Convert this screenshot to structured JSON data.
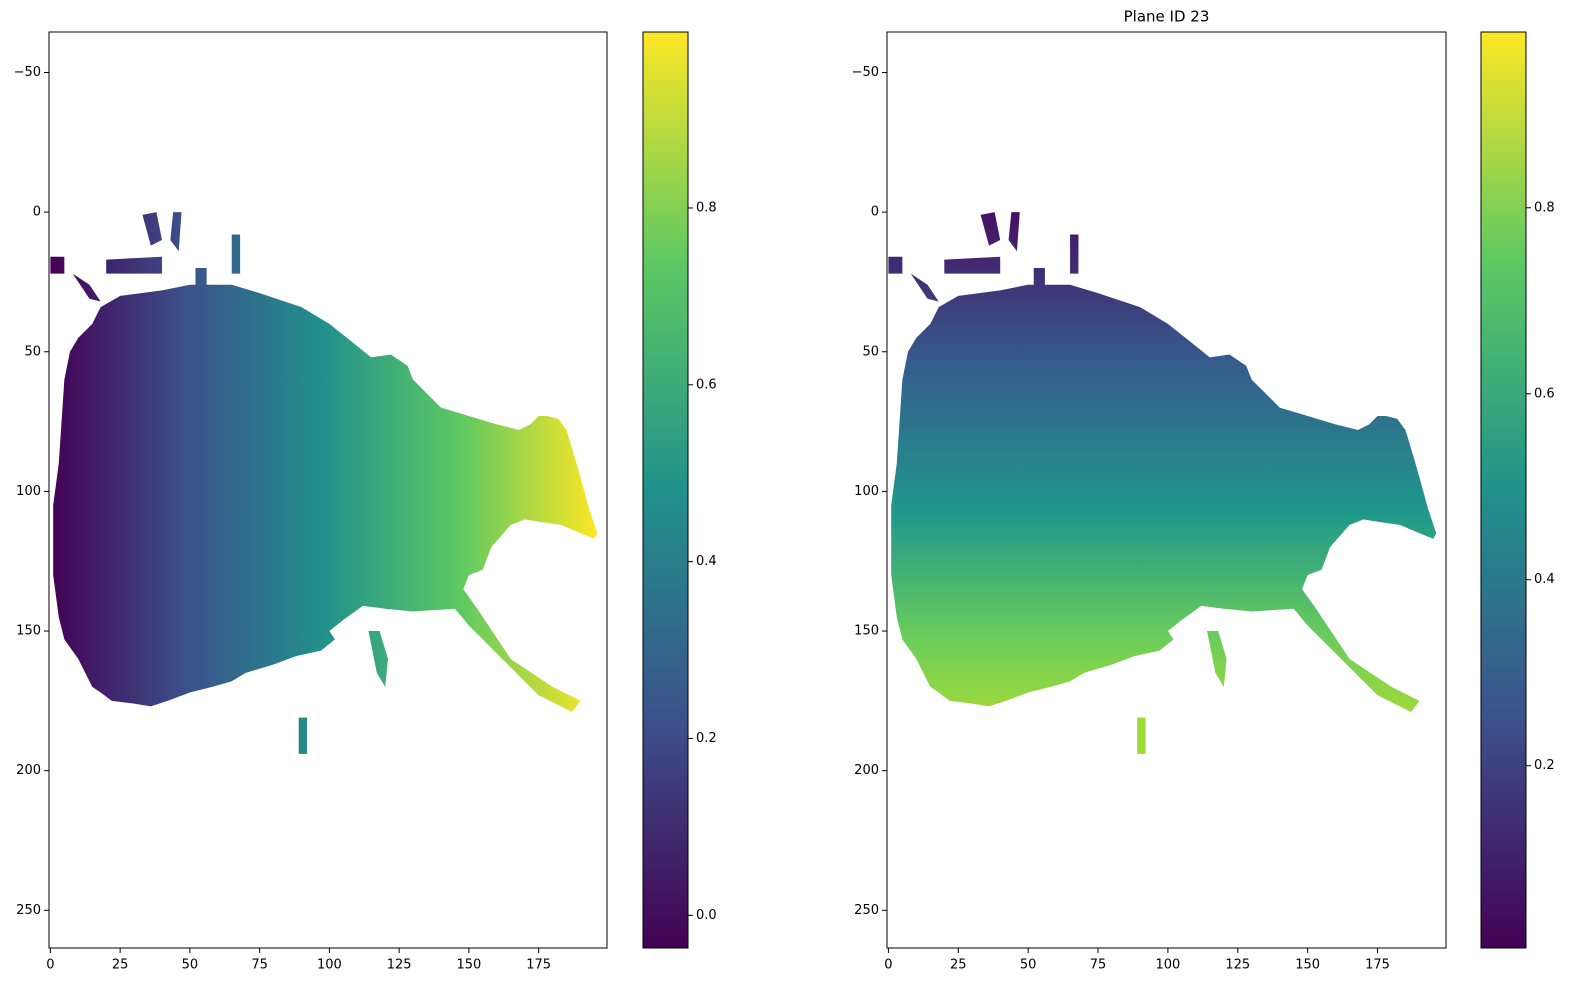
{
  "chart_data": [
    {
      "type": "heatmap",
      "xlim": [
        -0.5,
        199.5
      ],
      "ylim": [
        263.5,
        -64.5
      ],
      "xticks": [
        0,
        25,
        50,
        75,
        100,
        125,
        150,
        175
      ],
      "yticks": [
        {
          "value": -50,
          "label": "−50"
        },
        0,
        50,
        100,
        150,
        200,
        250
      ],
      "colorbar": {
        "lim": [
          -0.037,
          0.999
        ],
        "ticks": [
          {
            "value": 0,
            "label": "0.0"
          },
          0.2,
          0.4,
          0.6,
          0.8
        ]
      }
    },
    {
      "type": "heatmap",
      "title": "Plane ID 23",
      "xlim": [
        -0.5,
        199.5
      ],
      "ylim": [
        263.5,
        -64.5
      ],
      "xticks": [
        0,
        25,
        50,
        75,
        100,
        125,
        150,
        175
      ],
      "yticks": [
        {
          "value": -50,
          "label": "−50"
        },
        0,
        50,
        100,
        150,
        200,
        250
      ],
      "colorbar": {
        "lim": [
          0.004,
          0.989
        ],
        "ticks": [
          0.2,
          0.4,
          0.6,
          0.8
        ]
      }
    }
  ]
}
